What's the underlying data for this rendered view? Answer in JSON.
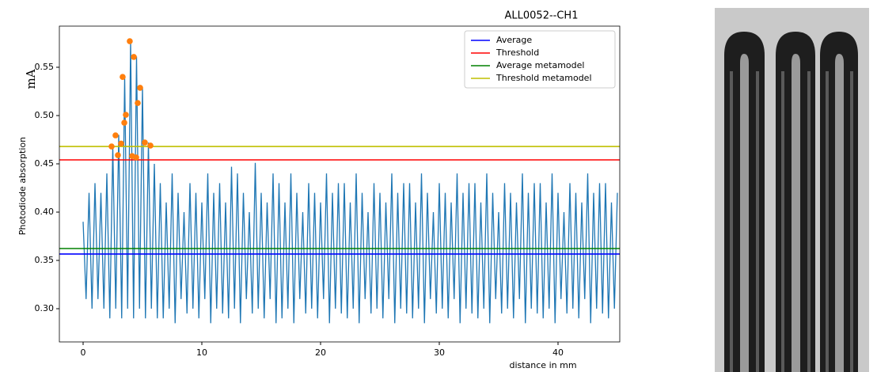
{
  "chart_data": {
    "type": "line",
    "title": "ALL0052--CH1",
    "ylabel": "Photodiode absorption",
    "unit_label": "mA",
    "xlabel": "distance in mm",
    "xlim": [
      -2,
      45.2
    ],
    "ylim": [
      0.2656,
      0.5926
    ],
    "xticks": [
      0,
      10,
      20,
      30,
      40
    ],
    "yticks": [
      {
        "value": 0.3,
        "label": "0.30"
      },
      0.35,
      {
        "value": 0.4,
        "label": "0.40"
      },
      0.45,
      {
        "value": 0.5,
        "label": "0.50"
      },
      0.55
    ],
    "legend": "upper right",
    "signal": {
      "color": "#1f77b4",
      "x": [
        0,
        0.25,
        0.5,
        0.75,
        1,
        1.25,
        1.5,
        1.75,
        2,
        2.25,
        2.5,
        2.75,
        3,
        3.25,
        3.5,
        3.75,
        4,
        4.25,
        4.5,
        4.75,
        5,
        5.25,
        5.5,
        5.75,
        6,
        6.25,
        6.5,
        6.75,
        7,
        7.25,
        7.5,
        7.75,
        8,
        8.25,
        8.5,
        8.75,
        9,
        9.25,
        9.5,
        9.75,
        10,
        10.25,
        10.5,
        10.75,
        11,
        11.25,
        11.5,
        11.75,
        12,
        12.25,
        12.5,
        12.75,
        13,
        13.25,
        13.5,
        13.75,
        14,
        14.25,
        14.5,
        14.75,
        15,
        15.25,
        15.5,
        15.75,
        16,
        16.25,
        16.5,
        16.75,
        17,
        17.25,
        17.5,
        17.75,
        18,
        18.25,
        18.5,
        18.75,
        19,
        19.25,
        19.5,
        19.75,
        20,
        20.25,
        20.5,
        20.75,
        21,
        21.25,
        21.5,
        21.75,
        22,
        22.25,
        22.5,
        22.75,
        23,
        23.25,
        23.5,
        23.75,
        24,
        24.25,
        24.5,
        24.75,
        25,
        25.25,
        25.5,
        25.75,
        26,
        26.25,
        26.5,
        26.75,
        27,
        27.25,
        27.5,
        27.75,
        28,
        28.25,
        28.5,
        28.75,
        29,
        29.25,
        29.5,
        29.75,
        30,
        30.25,
        30.5,
        30.75,
        31,
        31.25,
        31.5,
        31.75,
        32,
        32.25,
        32.5,
        32.75,
        33,
        33.25,
        33.5,
        33.75,
        34,
        34.25,
        34.5,
        34.75,
        35,
        35.25,
        35.5,
        35.75,
        36,
        36.25,
        36.5,
        36.75,
        37,
        37.25,
        37.5,
        37.75,
        38,
        38.25,
        38.5,
        38.75,
        39,
        39.25,
        39.5,
        39.75,
        40,
        40.25,
        40.5,
        40.75,
        41,
        41.25,
        41.5,
        41.75,
        42,
        42.25,
        42.5,
        42.75,
        43,
        43.25,
        43.5,
        43.75,
        44,
        44.25,
        44.5,
        44.75,
        45
      ],
      "values": [
        0.39,
        0.31,
        0.42,
        0.3,
        0.43,
        0.31,
        0.42,
        0.3,
        0.44,
        0.29,
        0.468,
        0.3,
        0.48,
        0.29,
        0.54,
        0.3,
        0.577,
        0.29,
        0.561,
        0.3,
        0.529,
        0.29,
        0.472,
        0.3,
        0.45,
        0.29,
        0.43,
        0.29,
        0.41,
        0.3,
        0.44,
        0.285,
        0.42,
        0.31,
        0.4,
        0.295,
        0.43,
        0.3,
        0.42,
        0.29,
        0.41,
        0.31,
        0.44,
        0.285,
        0.42,
        0.3,
        0.43,
        0.295,
        0.41,
        0.29,
        0.447,
        0.3,
        0.44,
        0.285,
        0.42,
        0.31,
        0.4,
        0.295,
        0.451,
        0.3,
        0.42,
        0.29,
        0.41,
        0.31,
        0.44,
        0.285,
        0.43,
        0.29,
        0.41,
        0.3,
        0.44,
        0.285,
        0.42,
        0.31,
        0.4,
        0.295,
        0.43,
        0.3,
        0.42,
        0.29,
        0.41,
        0.31,
        0.44,
        0.285,
        0.42,
        0.3,
        0.43,
        0.295,
        0.43,
        0.29,
        0.41,
        0.3,
        0.44,
        0.285,
        0.42,
        0.31,
        0.4,
        0.295,
        0.43,
        0.3,
        0.42,
        0.29,
        0.41,
        0.31,
        0.44,
        0.285,
        0.42,
        0.3,
        0.43,
        0.295,
        0.43,
        0.29,
        0.41,
        0.3,
        0.44,
        0.285,
        0.42,
        0.31,
        0.4,
        0.295,
        0.43,
        0.3,
        0.42,
        0.29,
        0.41,
        0.31,
        0.44,
        0.285,
        0.42,
        0.3,
        0.43,
        0.295,
        0.43,
        0.29,
        0.41,
        0.3,
        0.44,
        0.285,
        0.42,
        0.31,
        0.4,
        0.295,
        0.43,
        0.3,
        0.42,
        0.29,
        0.41,
        0.31,
        0.44,
        0.285,
        0.42,
        0.3,
        0.43,
        0.295,
        0.43,
        0.29,
        0.41,
        0.3,
        0.44,
        0.285,
        0.42,
        0.31,
        0.4,
        0.295,
        0.43,
        0.3,
        0.42,
        0.29,
        0.41,
        0.31,
        0.44,
        0.285,
        0.42,
        0.3,
        0.43,
        0.295,
        0.43,
        0.29,
        0.41,
        0.3,
        0.42
      ]
    },
    "peaks": {
      "color": "#ff7f0e",
      "x": [
        2.4,
        2.73,
        2.93,
        3.2,
        3.33,
        3.47,
        3.6,
        3.93,
        4.13,
        4.27,
        4.47,
        4.6,
        4.8,
        5.2,
        5.67
      ],
      "values": [
        0.468,
        0.4795,
        0.459,
        0.471,
        0.54,
        0.4926,
        0.5008,
        0.577,
        0.458,
        0.5607,
        0.4566,
        0.513,
        0.5287,
        0.4721,
        0.4689
      ]
    },
    "series": [
      {
        "name": "Average",
        "color": "#0000ff",
        "value": 0.3566
      },
      {
        "name": "Threshold",
        "color": "#ff0000",
        "value": 0.4541
      },
      {
        "name": "Average metamodel",
        "color": "#008000",
        "value": 0.3623
      },
      {
        "name": "Threshold metamodel",
        "color": "#bfbf00",
        "value": 0.468
      }
    ]
  }
}
